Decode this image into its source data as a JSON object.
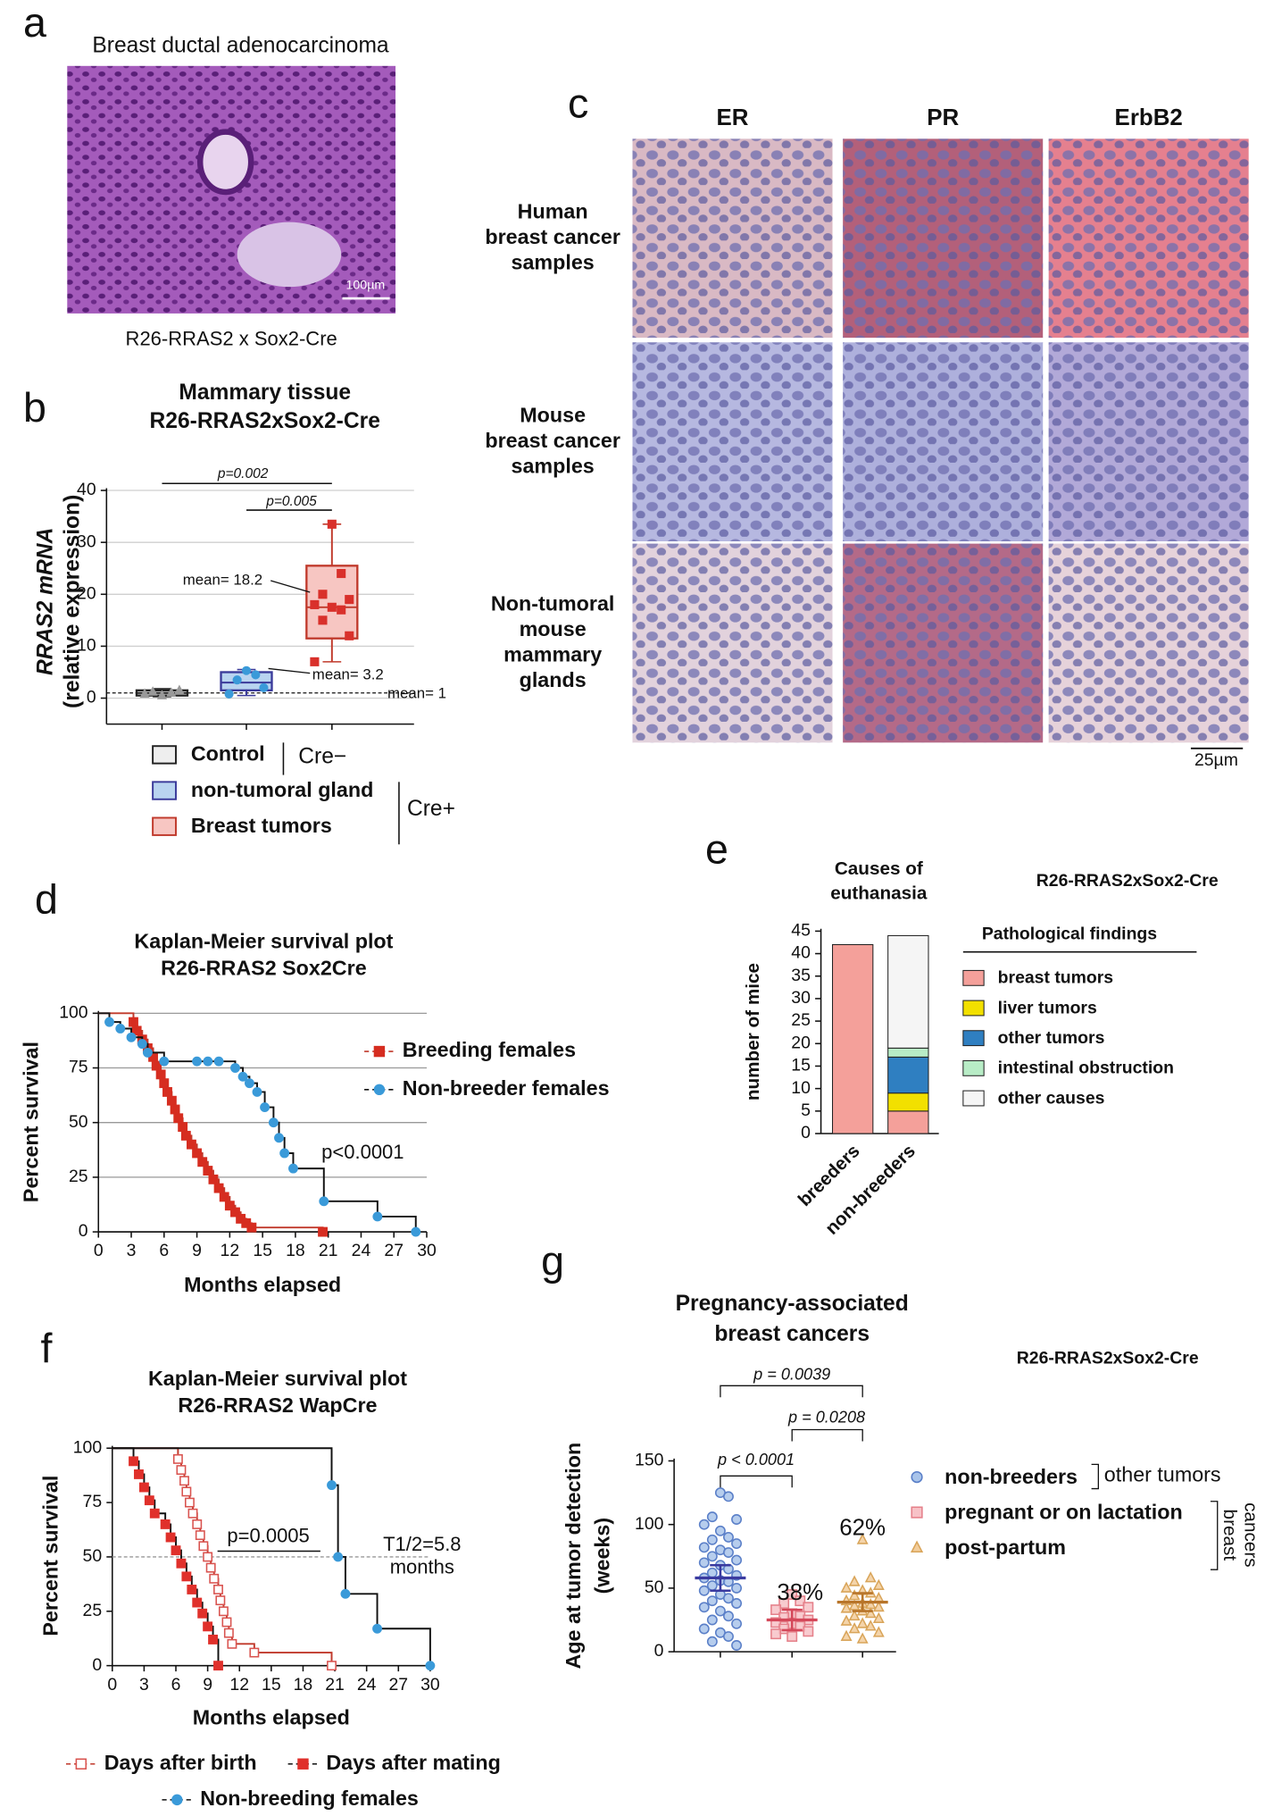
{
  "panel_labels": [
    "a",
    "b",
    "c",
    "d",
    "e",
    "f",
    "g"
  ],
  "images": [
    {
      "type": "image",
      "title": "Breast ductal adenocarcinoma",
      "scale_bar": "100µm",
      "caption": "R26-RRAS2 x Sox2-Cre"
    },
    {
      "type": "image-grid",
      "columns": [
        "ER",
        "PR",
        "ErbB2"
      ],
      "rows": [
        [
          "Human",
          "breast cancer",
          "samples"
        ],
        [
          "Mouse",
          "breast cancer",
          "samples"
        ],
        [
          "Non-tumoral",
          "mouse",
          "mammary",
          "glands"
        ]
      ],
      "scale_bar": "25µm"
    }
  ],
  "chart_data": [
    {
      "type": "box",
      "title": [
        "Mammary tissue",
        "R26-RRAS2xSox2-Cre"
      ],
      "ylabel": [
        "RRAS2 mRNA",
        "(relative expression)"
      ],
      "ylim": [
        -5,
        40
      ],
      "yticks": [
        0,
        10,
        20,
        30,
        40
      ],
      "grid": true,
      "reference_line": 1,
      "series": [
        {
          "name": "Control",
          "color": "#222222",
          "fill": "#eeeeee",
          "point_color": "#999999",
          "marker": "triangle",
          "whisker_low": 0.3,
          "q1": 0.5,
          "median": 1,
          "q3": 1.5,
          "whisker_high": 1.8,
          "points": [
            0.5,
            1,
            1.2,
            1.5,
            0.8
          ]
        },
        {
          "name": "non-tumoral gland",
          "color": "#3a3a9a",
          "fill": "#b9d4f0",
          "point_color": "#3a9ad9",
          "marker": "circle",
          "whisker_low": 0.5,
          "q1": 1.5,
          "median": 3,
          "q3": 5,
          "whisker_high": 5.5,
          "points": [
            5.3,
            4.5,
            3.5,
            2,
            0.8
          ]
        },
        {
          "name": "Breast tumors",
          "color": "#c0392b",
          "fill": "#f7c6c2",
          "point_color": "#d9302b",
          "marker": "square",
          "whisker_low": 7,
          "q1": 11.5,
          "median": 17.5,
          "q3": 25.5,
          "whisker_high": 33.5,
          "points": [
            33.5,
            24,
            20,
            19,
            18,
            17.5,
            17,
            15,
            12,
            7
          ]
        }
      ],
      "annotations": [
        "mean= 18.2",
        "mean= 3.2",
        "mean= 1"
      ],
      "p_values": [
        "p=0.002",
        "p=0.005"
      ],
      "legend_groups": [
        "Cre−",
        "Cre+"
      ]
    },
    {
      "type": "survival",
      "title": [
        "Kaplan-Meier survival plot",
        "R26-RRAS2 Sox2Cre"
      ],
      "xlabel": "Months elapsed",
      "ylabel": "Percent survival",
      "xlim": [
        0,
        30
      ],
      "xticks": [
        0,
        3,
        6,
        9,
        12,
        15,
        18,
        21,
        24,
        27,
        30
      ],
      "ylim": [
        0,
        100
      ],
      "yticks": [
        0,
        25,
        50,
        75,
        100
      ],
      "grid": true,
      "series": [
        {
          "name": "Breeding females",
          "color": "#d62d20",
          "line_color": "#c0392b",
          "marker": "square",
          "filled": true,
          "x": [
            0,
            3.2,
            3.5,
            4,
            4.5,
            5,
            5.3,
            5.7,
            6,
            6.3,
            6.7,
            7,
            7.3,
            7.7,
            8,
            8.5,
            9,
            9.5,
            10,
            10.5,
            11,
            11.5,
            12,
            12.5,
            13,
            13.5,
            14,
            20.5
          ],
          "values": [
            100,
            96,
            92,
            88,
            84,
            80,
            76,
            72,
            68,
            64,
            60,
            56,
            52,
            48,
            44,
            40,
            36,
            32,
            28,
            24,
            20,
            16,
            12,
            9,
            6,
            4,
            2,
            0
          ]
        },
        {
          "name": "Non-breeder females",
          "color": "#3a9ad9",
          "line_color": "#111111",
          "marker": "circle",
          "filled": true,
          "x": [
            0,
            1,
            2,
            3,
            4,
            4.5,
            6,
            9,
            10,
            11,
            12.5,
            13.2,
            13.8,
            14.5,
            15.2,
            16,
            16.5,
            17,
            17.8,
            20.6,
            25.5,
            29
          ],
          "values": [
            100,
            96,
            93,
            89,
            86,
            82,
            78,
            78,
            78,
            78,
            75,
            71,
            68,
            64,
            57,
            50,
            43,
            36,
            29,
            14,
            7,
            0
          ]
        }
      ],
      "annotations": [
        "p<0.0001"
      ]
    },
    {
      "type": "stacked_bar",
      "title": [
        "Causes of",
        "euthanasia"
      ],
      "subtitle": "R26-RRAS2xSox2-Cre",
      "ylabel": "number of mice",
      "categories": [
        "breeders",
        "non-breeders"
      ],
      "ylim": [
        0,
        45
      ],
      "yticks": [
        0,
        5,
        10,
        15,
        20,
        25,
        30,
        35,
        40,
        45
      ],
      "legend_title": "Pathological findings",
      "series": [
        {
          "name": "breast tumors",
          "color": "#f4a09a",
          "values": [
            42,
            5
          ]
        },
        {
          "name": "liver tumors",
          "color": "#f2e000",
          "values": [
            0,
            4
          ]
        },
        {
          "name": "other tumors",
          "color": "#2f7fc1",
          "values": [
            0,
            8
          ]
        },
        {
          "name": "intestinal obstruction",
          "color": "#b8ecc6",
          "values": [
            0,
            2
          ]
        },
        {
          "name": "other causes",
          "color": "#f5f5f5",
          "values": [
            0,
            25
          ]
        }
      ]
    },
    {
      "type": "survival",
      "title": [
        "Kaplan-Meier survival plot",
        "R26-RRAS2 WapCre"
      ],
      "xlabel": "Months elapsed",
      "ylabel": "Percent survival",
      "xlim": [
        0,
        30
      ],
      "xticks": [
        0,
        3,
        6,
        9,
        12,
        15,
        18,
        21,
        24,
        27,
        30
      ],
      "ylim": [
        0,
        100
      ],
      "yticks": [
        0,
        25,
        50,
        75,
        100
      ],
      "grid": false,
      "reference_line": 50,
      "series": [
        {
          "name": "Days after birth",
          "color": "#d9534f",
          "line_color": "#c0392b",
          "marker": "square",
          "filled": false,
          "x": [
            0,
            6.2,
            6.5,
            6.8,
            7,
            7.3,
            7.6,
            8,
            8.3,
            8.6,
            9,
            9.3,
            9.6,
            10,
            10.2,
            10.5,
            10.8,
            11,
            11.3,
            13.4,
            20.7
          ],
          "values": [
            100,
            95,
            90,
            85,
            80,
            75,
            70,
            65,
            60,
            55,
            50,
            45,
            40,
            35,
            30,
            25,
            20,
            15,
            10,
            6,
            0
          ]
        },
        {
          "name": "Days after mating",
          "color": "#e0302b",
          "line_color": "#111111",
          "marker": "square",
          "filled": true,
          "x": [
            0,
            2,
            2.5,
            3,
            3.5,
            4,
            5,
            5.5,
            6,
            6.5,
            7,
            7.5,
            8,
            8.5,
            9,
            9.5,
            10
          ],
          "values": [
            100,
            94,
            88,
            82,
            76,
            70,
            65,
            59,
            53,
            47,
            41,
            35,
            29,
            24,
            18,
            12,
            0
          ]
        },
        {
          "name": "Non-breeding females",
          "color": "#3a9ad9",
          "line_color": "#111111",
          "marker": "circle",
          "filled": true,
          "x": [
            0,
            20.7,
            21.3,
            22,
            25,
            30
          ],
          "values": [
            100,
            83,
            50,
            33,
            17,
            0
          ]
        }
      ],
      "annotations": [
        "p=0.0005",
        "T1/2=5.8",
        "months"
      ]
    },
    {
      "type": "dot",
      "title": [
        "Pregnancy-associated",
        "breast cancers"
      ],
      "subtitle": "R26-RRAS2xSox2-Cre",
      "ylabel": [
        "Age at tumor detection",
        "(weeks)"
      ],
      "ylim": [
        0,
        150
      ],
      "yticks": [
        0,
        50,
        100,
        150
      ],
      "series": [
        {
          "name": "non-breeders",
          "color": "#5a7fc8",
          "fill": "#a9c4ea",
          "mean_color": "#3a3aa0",
          "marker": "circle",
          "mean": 58,
          "error": 10,
          "values": [
            125,
            122,
            106,
            104,
            100,
            95,
            90,
            88,
            85,
            82,
            80,
            78,
            75,
            72,
            70,
            68,
            65,
            62,
            60,
            58,
            56,
            55,
            52,
            50,
            48,
            45,
            42,
            40,
            38,
            35,
            32,
            28,
            25,
            22,
            18,
            15,
            12,
            8,
            5
          ]
        },
        {
          "name": "pregnant or on lactation",
          "color": "#e5808a",
          "fill": "#f7c2c7",
          "mean_color": "#d4485a",
          "marker": "square",
          "mean": 25,
          "error": 8,
          "values": [
            45,
            40,
            38,
            35,
            33,
            30,
            28,
            27,
            25,
            23,
            22,
            20,
            18,
            16,
            14,
            12
          ]
        },
        {
          "name": "post-partum",
          "color": "#d9a55a",
          "fill": "#f2cd9b",
          "mean_color": "#b8752a",
          "marker": "triangle",
          "mean": 39,
          "error": 7,
          "values": [
            88,
            58,
            55,
            52,
            50,
            48,
            46,
            44,
            42,
            40,
            38,
            37,
            36,
            35,
            34,
            32,
            30,
            28,
            26,
            24,
            22,
            20,
            18,
            15,
            12,
            10
          ]
        }
      ],
      "percent_labels": [
        "38%",
        "62%"
      ],
      "p_values": [
        "p = 0.0039",
        "p = 0.0208",
        "p < 0.0001"
      ],
      "legend_groups": [
        "other  tumors",
        [
          "breast",
          "cancers"
        ]
      ]
    }
  ]
}
